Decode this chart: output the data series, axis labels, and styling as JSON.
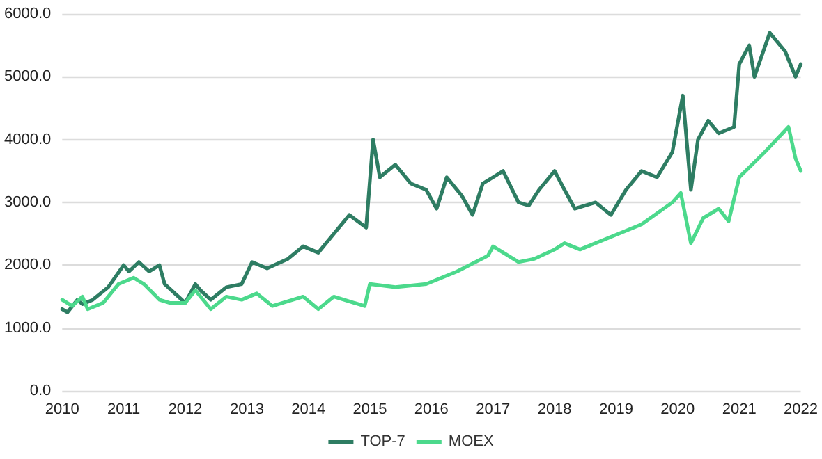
{
  "chart_data": {
    "type": "line",
    "xlim": [
      "2010",
      "2022"
    ],
    "xticks": [
      "2010",
      "2011",
      "2012",
      "2013",
      "2014",
      "2015",
      "2016",
      "2017",
      "2018",
      "2019",
      "2020",
      "2021",
      "2022"
    ],
    "ylim": [
      0,
      6000
    ],
    "yticks": [
      {
        "value": 0,
        "label": "0.0"
      },
      {
        "value": 1000,
        "label": "1000.0"
      },
      {
        "value": 2000,
        "label": "2000.0"
      },
      {
        "value": 3000,
        "label": "3000.0"
      },
      {
        "value": 4000,
        "label": "4000.0"
      },
      {
        "value": 5000,
        "label": "5000.0"
      },
      {
        "value": 6000,
        "label": "6000.0"
      }
    ],
    "grid": "y",
    "legend": "bottom",
    "marker": "none",
    "line_style": "solid",
    "series": [
      {
        "name": "TOP-7",
        "color": "#2e7d63",
        "x": [
          "2010-01",
          "2010-02",
          "2010-04",
          "2010-05",
          "2010-07",
          "2010-10",
          "2011-01",
          "2011-02",
          "2011-04",
          "2011-06",
          "2011-08",
          "2011-09",
          "2011-11",
          "2012-01",
          "2012-03",
          "2012-04",
          "2012-06",
          "2012-09",
          "2012-12",
          "2013-02",
          "2013-05",
          "2013-09",
          "2013-12",
          "2014-03",
          "2014-06",
          "2014-09",
          "2014-12-10",
          "2015-01-20",
          "2015-03",
          "2015-06",
          "2015-09",
          "2015-12",
          "2016-02",
          "2016-04",
          "2016-07",
          "2016-09",
          "2016-11",
          "2017-01",
          "2017-03",
          "2017-06",
          "2017-08",
          "2017-10",
          "2018-01",
          "2018-03",
          "2018-05",
          "2018-09",
          "2018-12",
          "2019-03",
          "2019-06",
          "2019-09",
          "2019-12",
          "2020-02",
          "2020-03-20",
          "2020-05",
          "2020-07",
          "2020-09",
          "2020-12",
          "2021-01",
          "2021-03",
          "2021-04",
          "2021-07",
          "2021-10",
          "2021-12",
          "2022-01"
        ],
        "values": [
          1300,
          1250,
          1450,
          1380,
          1450,
          1650,
          2000,
          1900,
          2050,
          1900,
          2000,
          1700,
          1550,
          1400,
          1700,
          1600,
          1450,
          1650,
          1700,
          2050,
          1950,
          2100,
          2300,
          2200,
          2500,
          2800,
          2600,
          4000,
          3400,
          3600,
          3300,
          3200,
          2900,
          3400,
          3100,
          2800,
          3300,
          3400,
          3500,
          3000,
          2950,
          3200,
          3500,
          3200,
          2900,
          3000,
          2800,
          3200,
          3500,
          3400,
          3800,
          4700,
          3200,
          4000,
          4300,
          4100,
          4200,
          5200,
          5500,
          5000,
          5700,
          5400,
          5000,
          5200
        ]
      },
      {
        "name": "MOEX",
        "color": "#4cd98c",
        "x": [
          "2010-01",
          "2010-03",
          "2010-05",
          "2010-06",
          "2010-09",
          "2010-12",
          "2011-03",
          "2011-05",
          "2011-08",
          "2011-10",
          "2012-01",
          "2012-03",
          "2012-06",
          "2012-09",
          "2012-12",
          "2013-03",
          "2013-06",
          "2013-12",
          "2014-03",
          "2014-06",
          "2014-12",
          "2015-01",
          "2015-06",
          "2015-12",
          "2016-06",
          "2016-12",
          "2017-01",
          "2017-06",
          "2017-09",
          "2018-01",
          "2018-03",
          "2018-06",
          "2018-12",
          "2019-06",
          "2019-12",
          "2020-01-20",
          "2020-03-20",
          "2020-06",
          "2020-09",
          "2020-10-30",
          "2021-01",
          "2021-06",
          "2021-10-20",
          "2021-12",
          "2022-01"
        ],
        "values": [
          1450,
          1350,
          1500,
          1300,
          1400,
          1700,
          1800,
          1700,
          1450,
          1400,
          1400,
          1600,
          1300,
          1500,
          1450,
          1550,
          1350,
          1500,
          1300,
          1500,
          1350,
          1700,
          1650,
          1700,
          1900,
          2150,
          2300,
          2050,
          2100,
          2250,
          2350,
          2250,
          2450,
          2650,
          3000,
          3150,
          2350,
          2750,
          2900,
          2700,
          3400,
          3800,
          4200,
          3700,
          3500
        ]
      }
    ]
  }
}
